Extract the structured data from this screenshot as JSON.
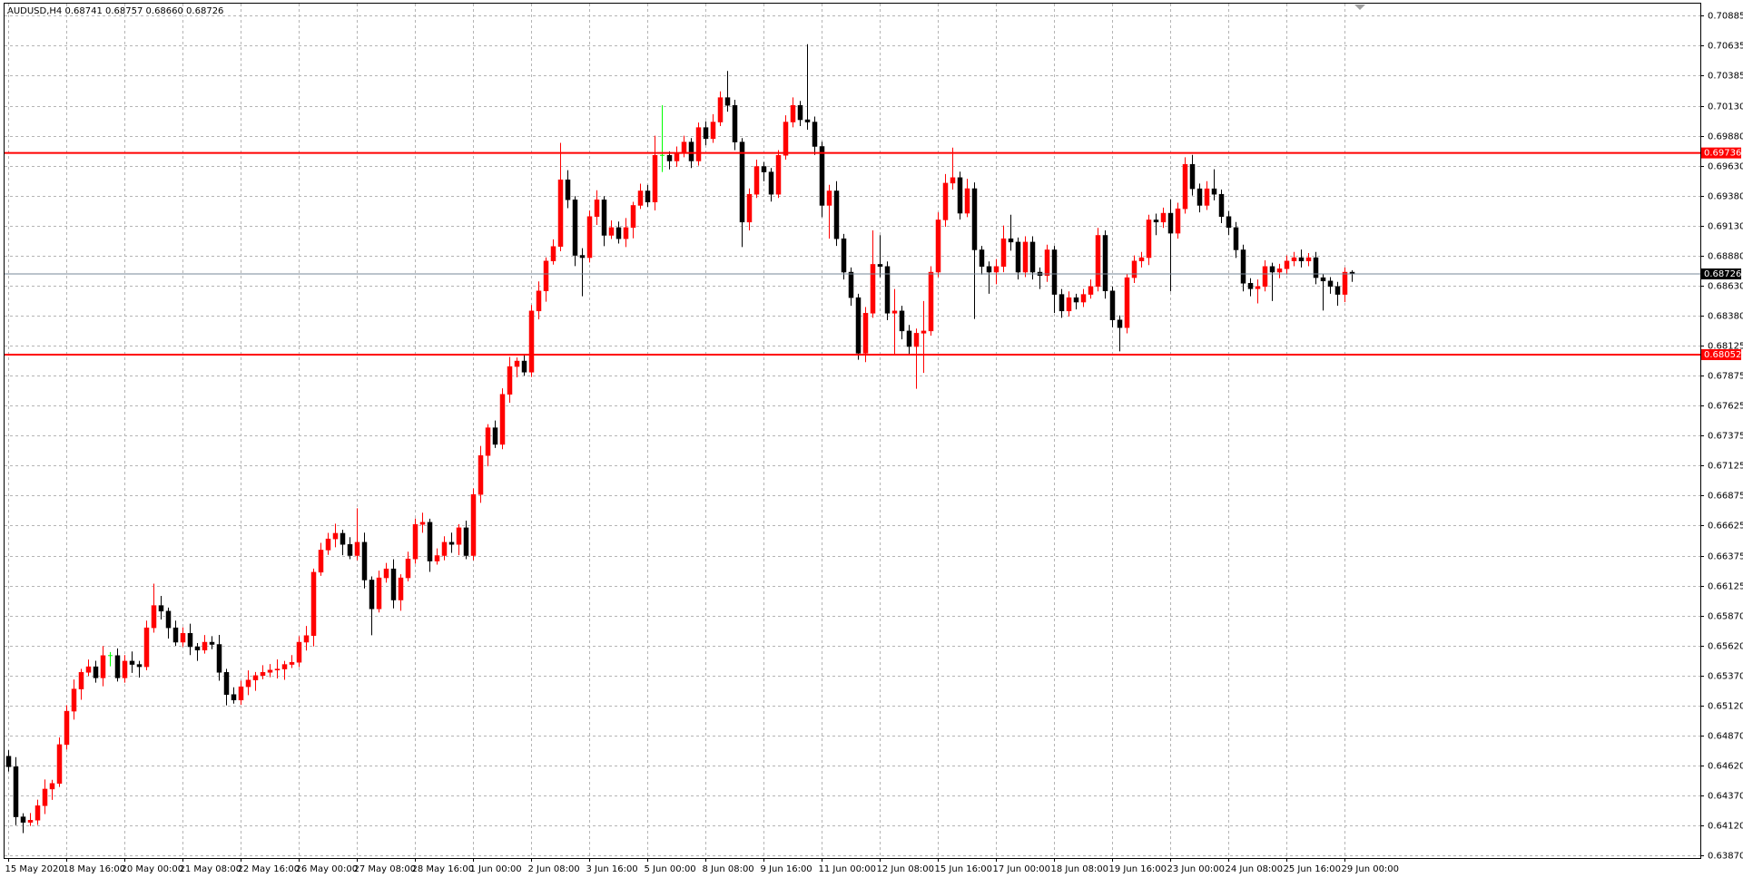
{
  "chart_data": {
    "type": "candlestick",
    "title": "AUDUSD,H4 0.68741 0.68757 0.68660 0.68726",
    "up_color": "#ff0000",
    "down_color": "#000000",
    "doji_color": "#00ff00",
    "grid": true,
    "ylim": [
      0.6385,
      0.7099
    ],
    "yticks": [
      0.70885,
      0.70635,
      0.70385,
      {
        "value": 0.7013,
        "label": "0.70130"
      },
      {
        "value": 0.6988,
        "label": "0.69880"
      },
      {
        "value": 0.6963,
        "label": "0.69630"
      },
      {
        "value": 0.6938,
        "label": "0.69380"
      },
      {
        "value": 0.6913,
        "label": "0.69130"
      },
      {
        "value": 0.6888,
        "label": "0.68880"
      },
      {
        "value": 0.6863,
        "label": "0.68630"
      },
      {
        "value": 0.6838,
        "label": "0.68380"
      },
      0.68125,
      0.67875,
      0.67625,
      0.67375,
      0.67125,
      0.66875,
      0.66625,
      0.66375,
      0.66125,
      {
        "value": 0.6587,
        "label": "0.65870"
      },
      {
        "value": 0.6562,
        "label": "0.65620"
      },
      {
        "value": 0.6537,
        "label": "0.65370"
      },
      {
        "value": 0.6512,
        "label": "0.65120"
      },
      {
        "value": 0.6487,
        "label": "0.64870"
      },
      {
        "value": 0.6462,
        "label": "0.64620"
      },
      {
        "value": 0.6437,
        "label": "0.64370"
      },
      {
        "value": 0.6412,
        "label": "0.64120"
      },
      {
        "value": 0.6387,
        "label": "0.63870"
      }
    ],
    "xticks": [
      {
        "value": 0,
        "label": "15 May 2020"
      },
      {
        "value": 8,
        "label": "18 May 16:00"
      },
      {
        "value": 16,
        "label": "20 May 00:00"
      },
      {
        "value": 24,
        "label": "21 May 08:00"
      },
      {
        "value": 32,
        "label": "22 May 16:00"
      },
      {
        "value": 40,
        "label": "26 May 00:00"
      },
      {
        "value": 48,
        "label": "27 May 08:00"
      },
      {
        "value": 56,
        "label": "28 May 16:00"
      },
      {
        "value": 64,
        "label": "1 Jun 00:00"
      },
      {
        "value": 72,
        "label": "2 Jun 08:00"
      },
      {
        "value": 80,
        "label": "3 Jun 16:00"
      },
      {
        "value": 88,
        "label": "5 Jun 00:00"
      },
      {
        "value": 96,
        "label": "8 Jun 08:00"
      },
      {
        "value": 104,
        "label": "9 Jun 16:00"
      },
      {
        "value": 112,
        "label": "11 Jun 00:00"
      },
      {
        "value": 120,
        "label": "12 Jun 08:00"
      },
      {
        "value": 128,
        "label": "15 Jun 16:00"
      },
      {
        "value": 136,
        "label": "17 Jun 00:00"
      },
      {
        "value": 144,
        "label": "18 Jun 08:00"
      },
      {
        "value": 152,
        "label": "19 Jun 16:00"
      },
      {
        "value": 160,
        "label": "23 Jun 00:00"
      },
      {
        "value": 168,
        "label": "24 Jun 08:00"
      },
      {
        "value": 176,
        "label": "25 Jun 16:00"
      },
      {
        "value": 184,
        "label": "29 Jun 00:00"
      }
    ],
    "levels": [
      {
        "value": 0.69736,
        "color": "#ff0000"
      },
      {
        "value": 0.68052,
        "color": "#ff0000"
      }
    ],
    "last_price_color": "#778899",
    "open": [
      0.647,
      0.64612,
      0.64194,
      0.64148,
      0.64166,
      0.64287,
      0.64426,
      0.64473,
      0.64797,
      0.65076,
      0.65261,
      0.654,
      0.65447,
      0.65354,
      0.6554,
      0.6554,
      0.65354,
      0.65494,
      0.65466,
      0.65447,
      0.65772,
      0.65958,
      0.65911,
      0.65772,
      0.65652,
      0.65726,
      0.65614,
      0.65586,
      0.65652,
      0.65633,
      0.654,
      0.65215,
      0.65169,
      0.6528,
      0.65336,
      0.65373,
      0.654,
      0.65419,
      0.65428,
      0.65466,
      0.65484,
      0.65652,
      0.65707,
      0.66236,
      0.66421,
      0.66514,
      0.66561,
      0.66468,
      0.66375,
      0.66486,
      0.66171,
      0.6593,
      0.66189,
      0.66264,
      0.66004,
      0.66189,
      0.66347,
      0.66635,
      0.66653,
      0.66329,
      0.66375,
      0.66486,
      0.66468,
      0.66607,
      0.66375,
      0.66885,
      0.6721,
      0.67442,
      0.67303,
      0.67721,
      0.67953,
      0.67999,
      0.67906,
      0.68417,
      0.68584,
      0.68834,
      0.68955,
      0.69512,
      0.69345,
      0.68881,
      0.68862,
      0.69205,
      0.69345,
      0.69048,
      0.69113,
      0.6902,
      0.69113,
      0.69298,
      0.69419,
      0.69326,
      0.69716,
      0.69716,
      0.69669,
      0.69734,
      0.69827,
      0.69669,
      0.69948,
      0.69855,
      0.69994,
      0.70198,
      0.70133,
      0.69827,
      0.69159,
      0.69391,
      0.69623,
      0.69577,
      0.69391,
      0.69716,
      0.69994,
      0.70133,
      0.70013,
      0.69994,
      0.6979,
      0.69298,
      0.69419,
      0.6902,
      0.68741,
      0.68528,
      0.68064,
      0.68398,
      0.68806,
      0.68788,
      0.68398,
      0.68417,
      0.6825,
      0.6812,
      0.68231,
      0.6825,
      0.68741,
      0.69177,
      0.69484,
      0.6953,
      0.69233,
      0.69438,
      0.68927,
      0.68788,
      0.68741,
      0.68788,
      0.6902,
      0.68992,
      0.68741,
      0.68992,
      0.68741,
      0.68713,
      0.68927,
      0.68555,
      0.68417,
      0.68528,
      0.68491,
      0.68555,
      0.68621,
      0.69048,
      0.68584,
      0.68342,
      0.68278,
      0.68695,
      0.68834,
      0.68862,
      0.69177,
      0.69159,
      0.69233,
      0.69066,
      0.6927,
      0.69641,
      0.69437,
      0.69298,
      0.69437,
      0.69391,
      0.69205,
      0.69113,
      0.68927,
      0.68648,
      0.68602,
      0.68621,
      0.68788,
      0.68741,
      0.68769,
      0.68834,
      0.68862,
      0.68834,
      0.68862,
      0.68695,
      0.68667,
      0.68621,
      0.68555,
      0.68741
    ],
    "high": [
      0.6475,
      0.64692,
      0.64224,
      0.64226,
      0.64337,
      0.64506,
      0.64503,
      0.64857,
      0.65126,
      0.65341,
      0.6543,
      0.65507,
      0.65497,
      0.6562,
      0.6557,
      0.656,
      0.65544,
      0.65574,
      0.65496,
      0.65832,
      0.6614,
      0.66038,
      0.65941,
      0.65832,
      0.65776,
      0.65806,
      0.65644,
      0.65712,
      0.65702,
      0.65713,
      0.6543,
      0.65275,
      0.6533,
      0.65416,
      0.65403,
      0.6546,
      0.65469,
      0.65508,
      0.65496,
      0.65544,
      0.65702,
      0.65787,
      0.66266,
      0.66481,
      0.66564,
      0.66641,
      0.66591,
      0.66528,
      0.6677,
      0.66566,
      0.66201,
      0.66249,
      0.66314,
      0.66344,
      0.66219,
      0.66407,
      0.66685,
      0.66733,
      0.66683,
      0.66435,
      0.66536,
      0.66566,
      0.66637,
      0.66667,
      0.66935,
      0.6729,
      0.67472,
      0.67502,
      0.67771,
      0.68033,
      0.68029,
      0.68059,
      0.68467,
      0.68664,
      0.68864,
      0.69015,
      0.6982,
      0.69592,
      0.69375,
      0.68941,
      0.69255,
      0.69425,
      0.69375,
      0.69173,
      0.69163,
      0.69193,
      0.69328,
      0.69479,
      0.69469,
      0.6988,
      0.70134,
      0.69749,
      0.6979,
      0.6988,
      0.6986,
      0.6999,
      0.7,
      0.7006,
      0.7025,
      0.7042,
      0.7018,
      0.6986,
      0.6944,
      0.6968,
      0.6966,
      0.6961,
      0.6976,
      0.7005,
      0.702,
      0.7017,
      0.70644,
      0.7004,
      0.6983,
      0.6947,
      0.695,
      0.6906,
      0.6878,
      0.6856,
      0.6845,
      0.6909,
      0.6905,
      0.6883,
      0.686,
      0.6846,
      0.683,
      0.6827,
      0.685,
      0.6879,
      0.6924,
      0.6956,
      0.6978,
      0.6958,
      0.6952,
      0.6949,
      0.6896,
      0.6883,
      0.6885,
      0.6913,
      0.6922,
      0.6903,
      0.6904,
      0.6904,
      0.6878,
      0.6897,
      0.6896,
      0.686,
      0.6858,
      0.6856,
      0.686,
      0.6868,
      0.6911,
      0.6909,
      0.6862,
      0.6838,
      0.6873,
      0.6888,
      0.6891,
      0.6922,
      0.6923,
      0.6928,
      0.6935,
      0.6932,
      0.697,
      0.6972,
      0.6948,
      0.695,
      0.696,
      0.6943,
      0.6925,
      0.6916,
      0.6897,
      0.6869,
      0.6868,
      0.6884,
      0.6882,
      0.6881,
      0.6888,
      0.6891,
      0.6893,
      0.689,
      0.6891,
      0.6873,
      0.687,
      0.6866,
      0.6878,
      0.68757
    ],
    "low": [
      0.64572,
      0.64124,
      0.64058,
      0.64118,
      0.64126,
      0.64217,
      0.64336,
      0.64443,
      0.64757,
      0.65006,
      0.65171,
      0.6537,
      0.65314,
      0.65284,
      0.6545,
      0.65324,
      0.65314,
      0.65396,
      0.65357,
      0.65417,
      0.65732,
      0.65841,
      0.65682,
      0.65622,
      0.65612,
      0.65544,
      0.65496,
      0.65556,
      0.65593,
      0.6533,
      0.65125,
      0.65139,
      0.65129,
      0.6521,
      0.65246,
      0.65343,
      0.6536,
      0.65349,
      0.65338,
      0.65436,
      0.65444,
      0.65582,
      0.65617,
      0.66206,
      0.66381,
      0.66444,
      0.66378,
      0.66345,
      0.66335,
      0.66101,
      0.6571,
      0.659,
      0.66149,
      0.65934,
      0.65914,
      0.66159,
      0.66307,
      0.66565,
      0.66239,
      0.66299,
      0.66335,
      0.66398,
      0.66378,
      0.66345,
      0.66335,
      0.66815,
      0.6712,
      0.67273,
      0.67263,
      0.67651,
      0.67863,
      0.67876,
      0.67866,
      0.68347,
      0.68494,
      0.68804,
      0.68915,
      0.69275,
      0.68791,
      0.6854,
      0.68822,
      0.69135,
      0.68958,
      0.69018,
      0.6898,
      0.6895,
      0.69023,
      0.69268,
      0.69286,
      0.69256,
      0.69577,
      0.69599,
      0.6962,
      0.697,
      0.6961,
      0.6963,
      0.698,
      0.6982,
      0.6996,
      0.7008,
      0.6976,
      0.6895,
      0.6909,
      0.6936,
      0.695,
      0.6933,
      0.6936,
      0.6968,
      0.6995,
      0.6996,
      0.6993,
      0.6972,
      0.692,
      0.6902,
      0.6896,
      0.6868,
      0.6846,
      0.6801,
      0.6799,
      0.6836,
      0.687,
      0.6834,
      0.6806,
      0.6818,
      0.6805,
      0.67767,
      0.679,
      0.6821,
      0.687,
      0.6912,
      0.6943,
      0.6918,
      0.692,
      0.6835,
      0.6872,
      0.6856,
      0.6864,
      0.6874,
      0.6892,
      0.6868,
      0.687,
      0.6868,
      0.686,
      0.6866,
      0.684,
      0.6836,
      0.6837,
      0.6843,
      0.6845,
      0.6852,
      0.6858,
      0.6852,
      0.6828,
      0.6808,
      0.6823,
      0.6865,
      0.6878,
      0.688,
      0.6905,
      0.6911,
      0.6858,
      0.6902,
      0.6923,
      0.6938,
      0.6924,
      0.6926,
      0.6934,
      0.6915,
      0.6905,
      0.6886,
      0.6858,
      0.6854,
      0.6848,
      0.6858,
      0.685,
      0.6869,
      0.6872,
      0.6879,
      0.6878,
      0.6879,
      0.6864,
      0.6842,
      0.6856,
      0.6846,
      0.6849,
      0.6866
    ],
    "close": [
      0.64612,
      0.64194,
      0.64148,
      0.64166,
      0.64287,
      0.64426,
      0.64473,
      0.64797,
      0.65076,
      0.65261,
      0.654,
      0.65447,
      0.65354,
      0.6554,
      0.6554,
      0.65354,
      0.65494,
      0.65466,
      0.65447,
      0.65772,
      0.65958,
      0.65911,
      0.65772,
      0.65652,
      0.65726,
      0.65614,
      0.65586,
      0.65652,
      0.65633,
      0.654,
      0.65215,
      0.65169,
      0.6528,
      0.65336,
      0.65373,
      0.654,
      0.65419,
      0.65428,
      0.65466,
      0.65484,
      0.65652,
      0.65707,
      0.66236,
      0.66421,
      0.66514,
      0.66561,
      0.66468,
      0.66375,
      0.66486,
      0.66171,
      0.6593,
      0.66189,
      0.66264,
      0.66004,
      0.66189,
      0.66347,
      0.66635,
      0.66653,
      0.66329,
      0.66375,
      0.66486,
      0.66468,
      0.66607,
      0.66375,
      0.66885,
      0.6721,
      0.67442,
      0.67303,
      0.67721,
      0.67953,
      0.67999,
      0.67906,
      0.68417,
      0.68584,
      0.68834,
      0.68955,
      0.69512,
      0.69345,
      0.68881,
      0.68862,
      0.69205,
      0.69345,
      0.69048,
      0.69113,
      0.6902,
      0.69113,
      0.69298,
      0.69419,
      0.69326,
      0.69716,
      0.69716,
      0.69669,
      0.69734,
      0.69827,
      0.69669,
      0.69948,
      0.69855,
      0.69994,
      0.70198,
      0.70133,
      0.69827,
      0.69159,
      0.69391,
      0.69623,
      0.69577,
      0.69391,
      0.69716,
      0.69994,
      0.70133,
      0.70013,
      0.69994,
      0.6979,
      0.69298,
      0.69419,
      0.6902,
      0.68741,
      0.68528,
      0.68064,
      0.68398,
      0.68806,
      0.68788,
      0.68398,
      0.68417,
      0.6825,
      0.6812,
      0.68231,
      0.6825,
      0.68741,
      0.69177,
      0.69484,
      0.6953,
      0.69233,
      0.69438,
      0.68927,
      0.68788,
      0.68741,
      0.68788,
      0.6902,
      0.68992,
      0.68741,
      0.68992,
      0.68741,
      0.68713,
      0.68927,
      0.68555,
      0.68417,
      0.68528,
      0.68491,
      0.68555,
      0.68621,
      0.69048,
      0.68584,
      0.68342,
      0.68278,
      0.68695,
      0.68834,
      0.68862,
      0.69177,
      0.69159,
      0.69233,
      0.69066,
      0.6927,
      0.69641,
      0.69437,
      0.69298,
      0.69437,
      0.69391,
      0.69205,
      0.69113,
      0.68927,
      0.68648,
      0.68602,
      0.68621,
      0.68788,
      0.68741,
      0.68769,
      0.68834,
      0.68862,
      0.68834,
      0.68862,
      0.68695,
      0.68667,
      0.68621,
      0.68555,
      0.68741,
      0.68726
    ]
  }
}
